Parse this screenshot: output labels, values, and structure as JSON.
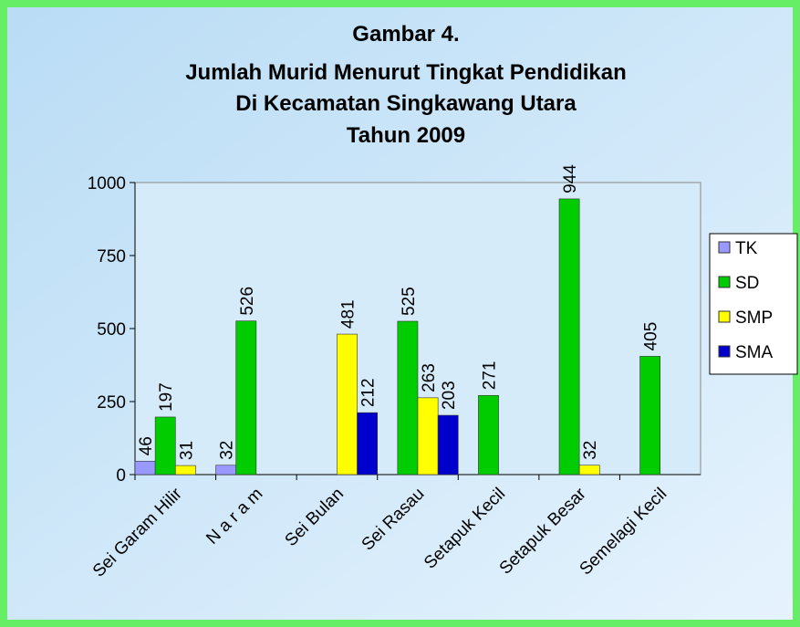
{
  "chart_data": {
    "type": "bar",
    "title": [
      "Gambar 4.",
      "Jumlah Murid Menurut Tingkat Pendidikan",
      "Di Kecamatan Singkawang Utara",
      "Tahun 2009"
    ],
    "categories": [
      "Sei Garam Hilir",
      "N a r a m",
      "Sei Bulan",
      "Sei Rasau",
      "Setapuk Kecil",
      "Setapuk Besar",
      "Semelagi Kecil"
    ],
    "series": [
      {
        "name": "TK",
        "color": "#9999ff",
        "values": [
          46,
          32,
          null,
          null,
          null,
          null,
          null
        ]
      },
      {
        "name": "SD",
        "color": "#00cc00",
        "values": [
          197,
          526,
          null,
          525,
          271,
          944,
          405
        ]
      },
      {
        "name": "SMP",
        "color": "#ffff00",
        "values": [
          31,
          null,
          481,
          263,
          null,
          32,
          null
        ]
      },
      {
        "name": "SMA",
        "color": "#0000cc",
        "values": [
          null,
          null,
          212,
          203,
          null,
          null,
          null
        ]
      }
    ],
    "ylim": [
      0,
      1000
    ],
    "yticks": [
      0,
      250,
      500,
      750,
      1000
    ],
    "legend": "right"
  }
}
